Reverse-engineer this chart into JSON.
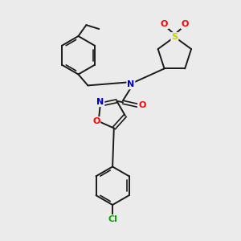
{
  "background_color": "#ebebeb",
  "bond_color": "#1a1a1a",
  "atom_colors": {
    "N": "#0000cc",
    "O": "#ff0000",
    "S": "#cccc00",
    "Cl": "#00aa00",
    "C": "#1a1a1a"
  },
  "figsize": [
    3.0,
    3.0
  ],
  "dpi": 100
}
